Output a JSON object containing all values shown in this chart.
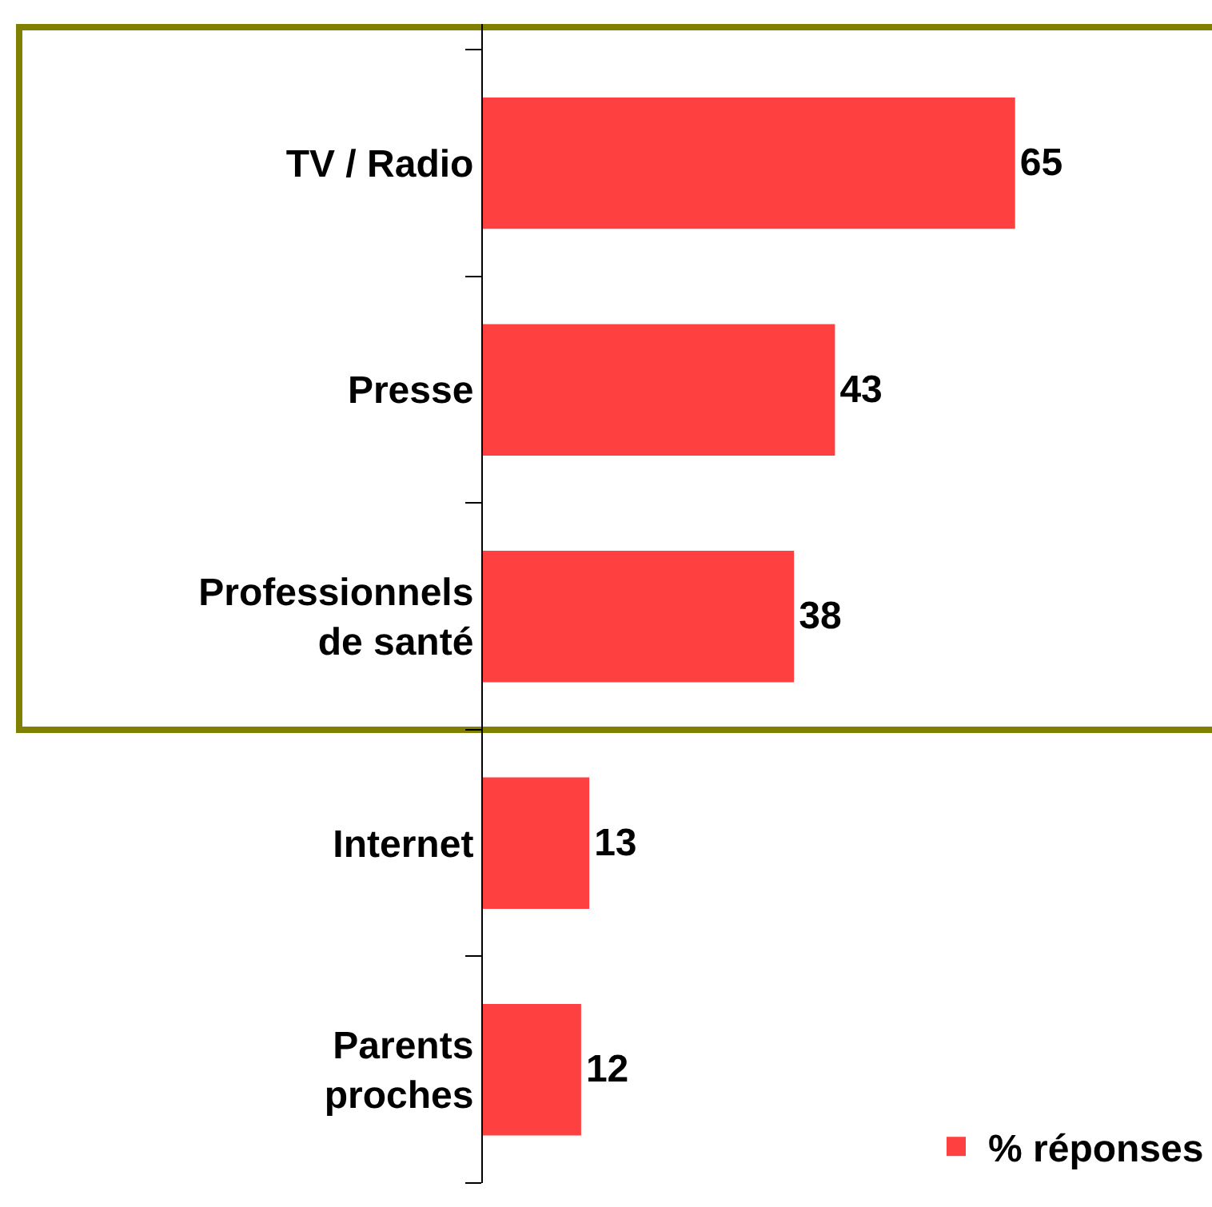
{
  "chart_data": {
    "type": "bar",
    "orientation": "horizontal",
    "categories": [
      "TV / Radio",
      "Presse",
      "Professionnels\nde santé",
      "Internet",
      "Parents\nproches"
    ],
    "series": [
      {
        "name": "% réponses",
        "color": "#ff4040",
        "values": [
          65,
          43,
          38,
          13,
          12
        ]
      }
    ],
    "data_labels": true,
    "legend": "bottom right",
    "tick_labels": "y"
  }
}
